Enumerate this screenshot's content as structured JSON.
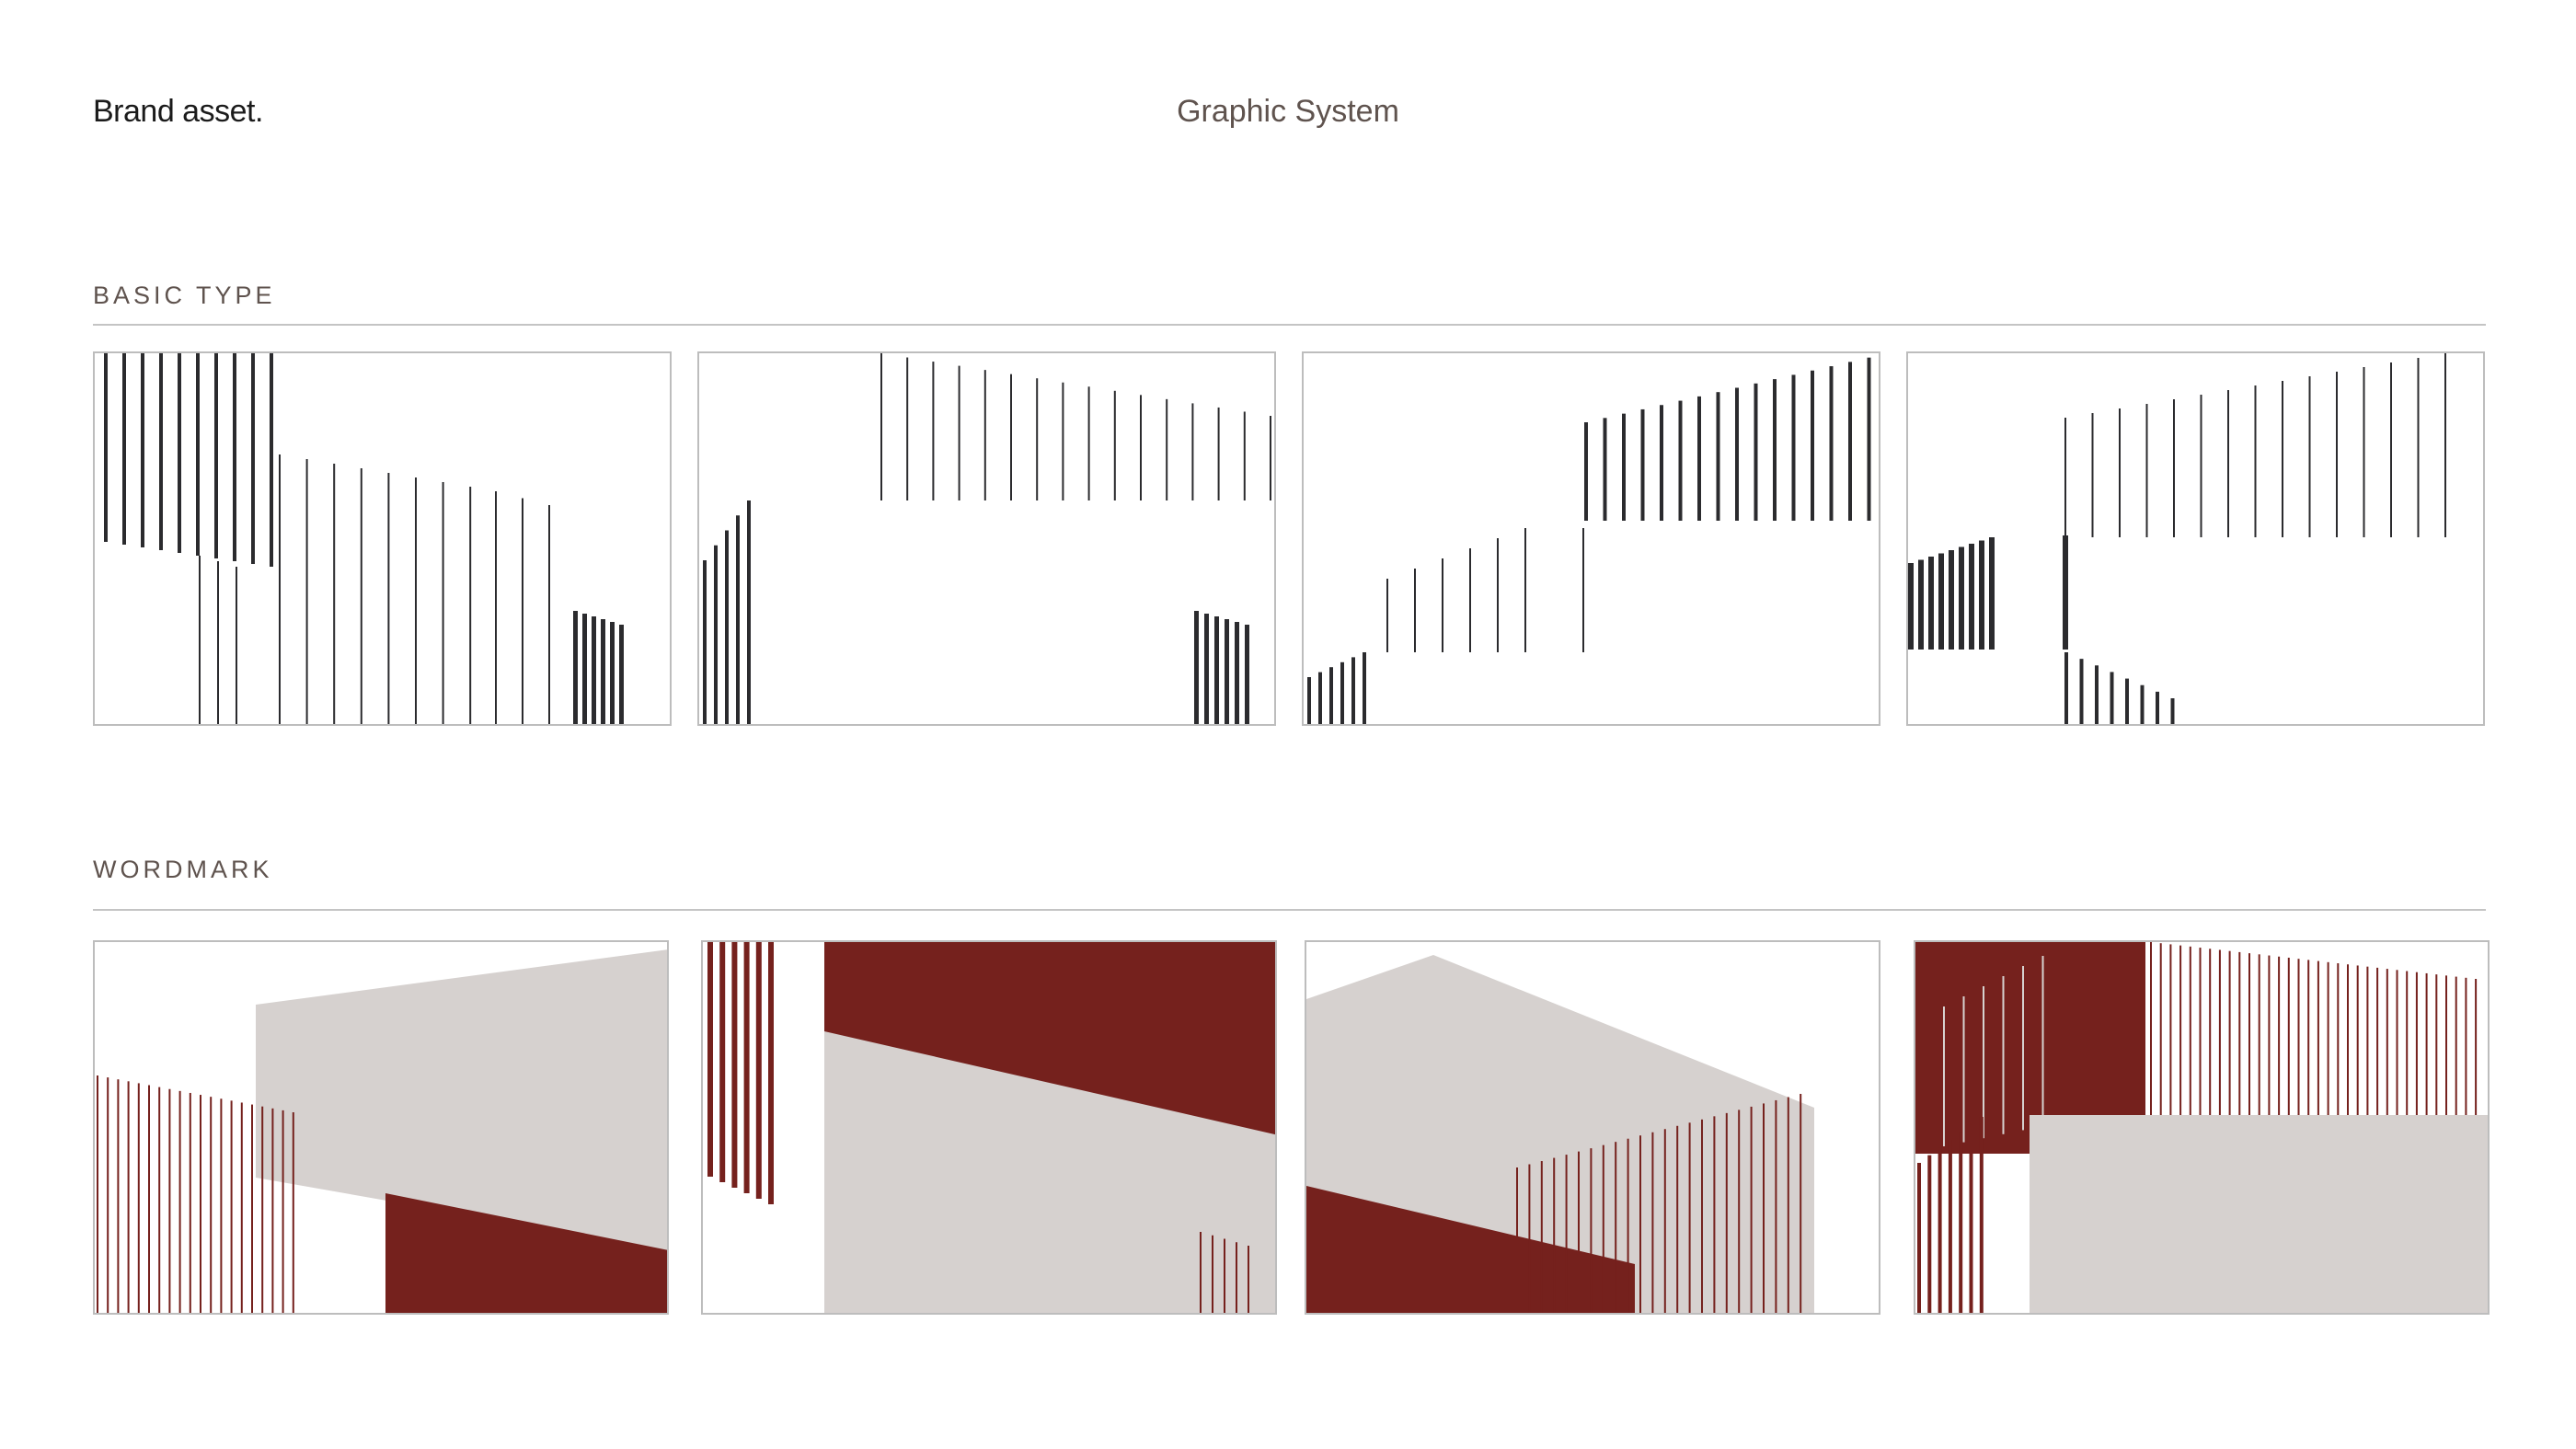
{
  "header": {
    "brand": "Brand asset.",
    "title": "Graphic System"
  },
  "sections": [
    {
      "label": "BASIC TYPE"
    },
    {
      "label": "WORDMARK"
    }
  ],
  "colors": {
    "ink": "#2b2b2e",
    "maroon": "#75211d",
    "grey": "#d6d1cf",
    "border": "#bdbdbd"
  }
}
